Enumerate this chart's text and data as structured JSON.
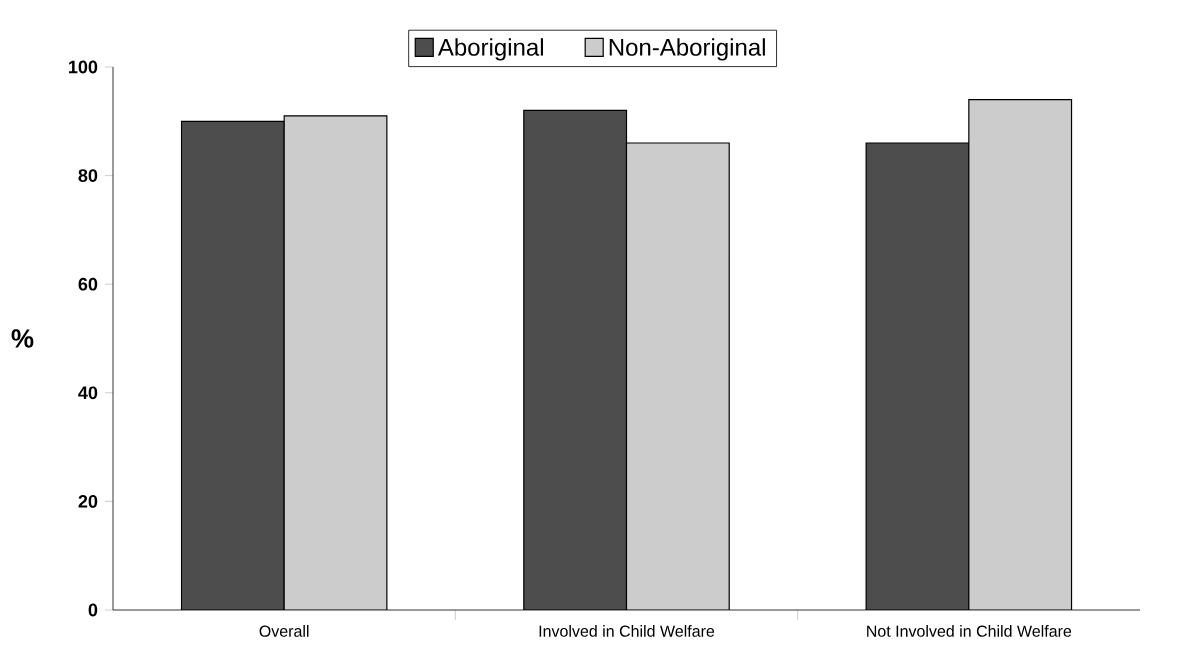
{
  "chart_data": {
    "type": "bar",
    "ylabel": "%",
    "categories": [
      "Overall",
      "Involved in Child Welfare",
      "Not Involved in Child Welfare"
    ],
    "series": [
      {
        "name": "Aboriginal",
        "color": "#4d4d4d",
        "values": [
          90,
          92,
          86
        ]
      },
      {
        "name": "Non-Aboriginal",
        "color": "#cccccc",
        "values": [
          91,
          86,
          94
        ]
      }
    ],
    "ylim": [
      0,
      100
    ],
    "yticks": [
      0,
      20,
      40,
      60,
      80,
      100
    ],
    "legend": "top",
    "grid": false
  }
}
